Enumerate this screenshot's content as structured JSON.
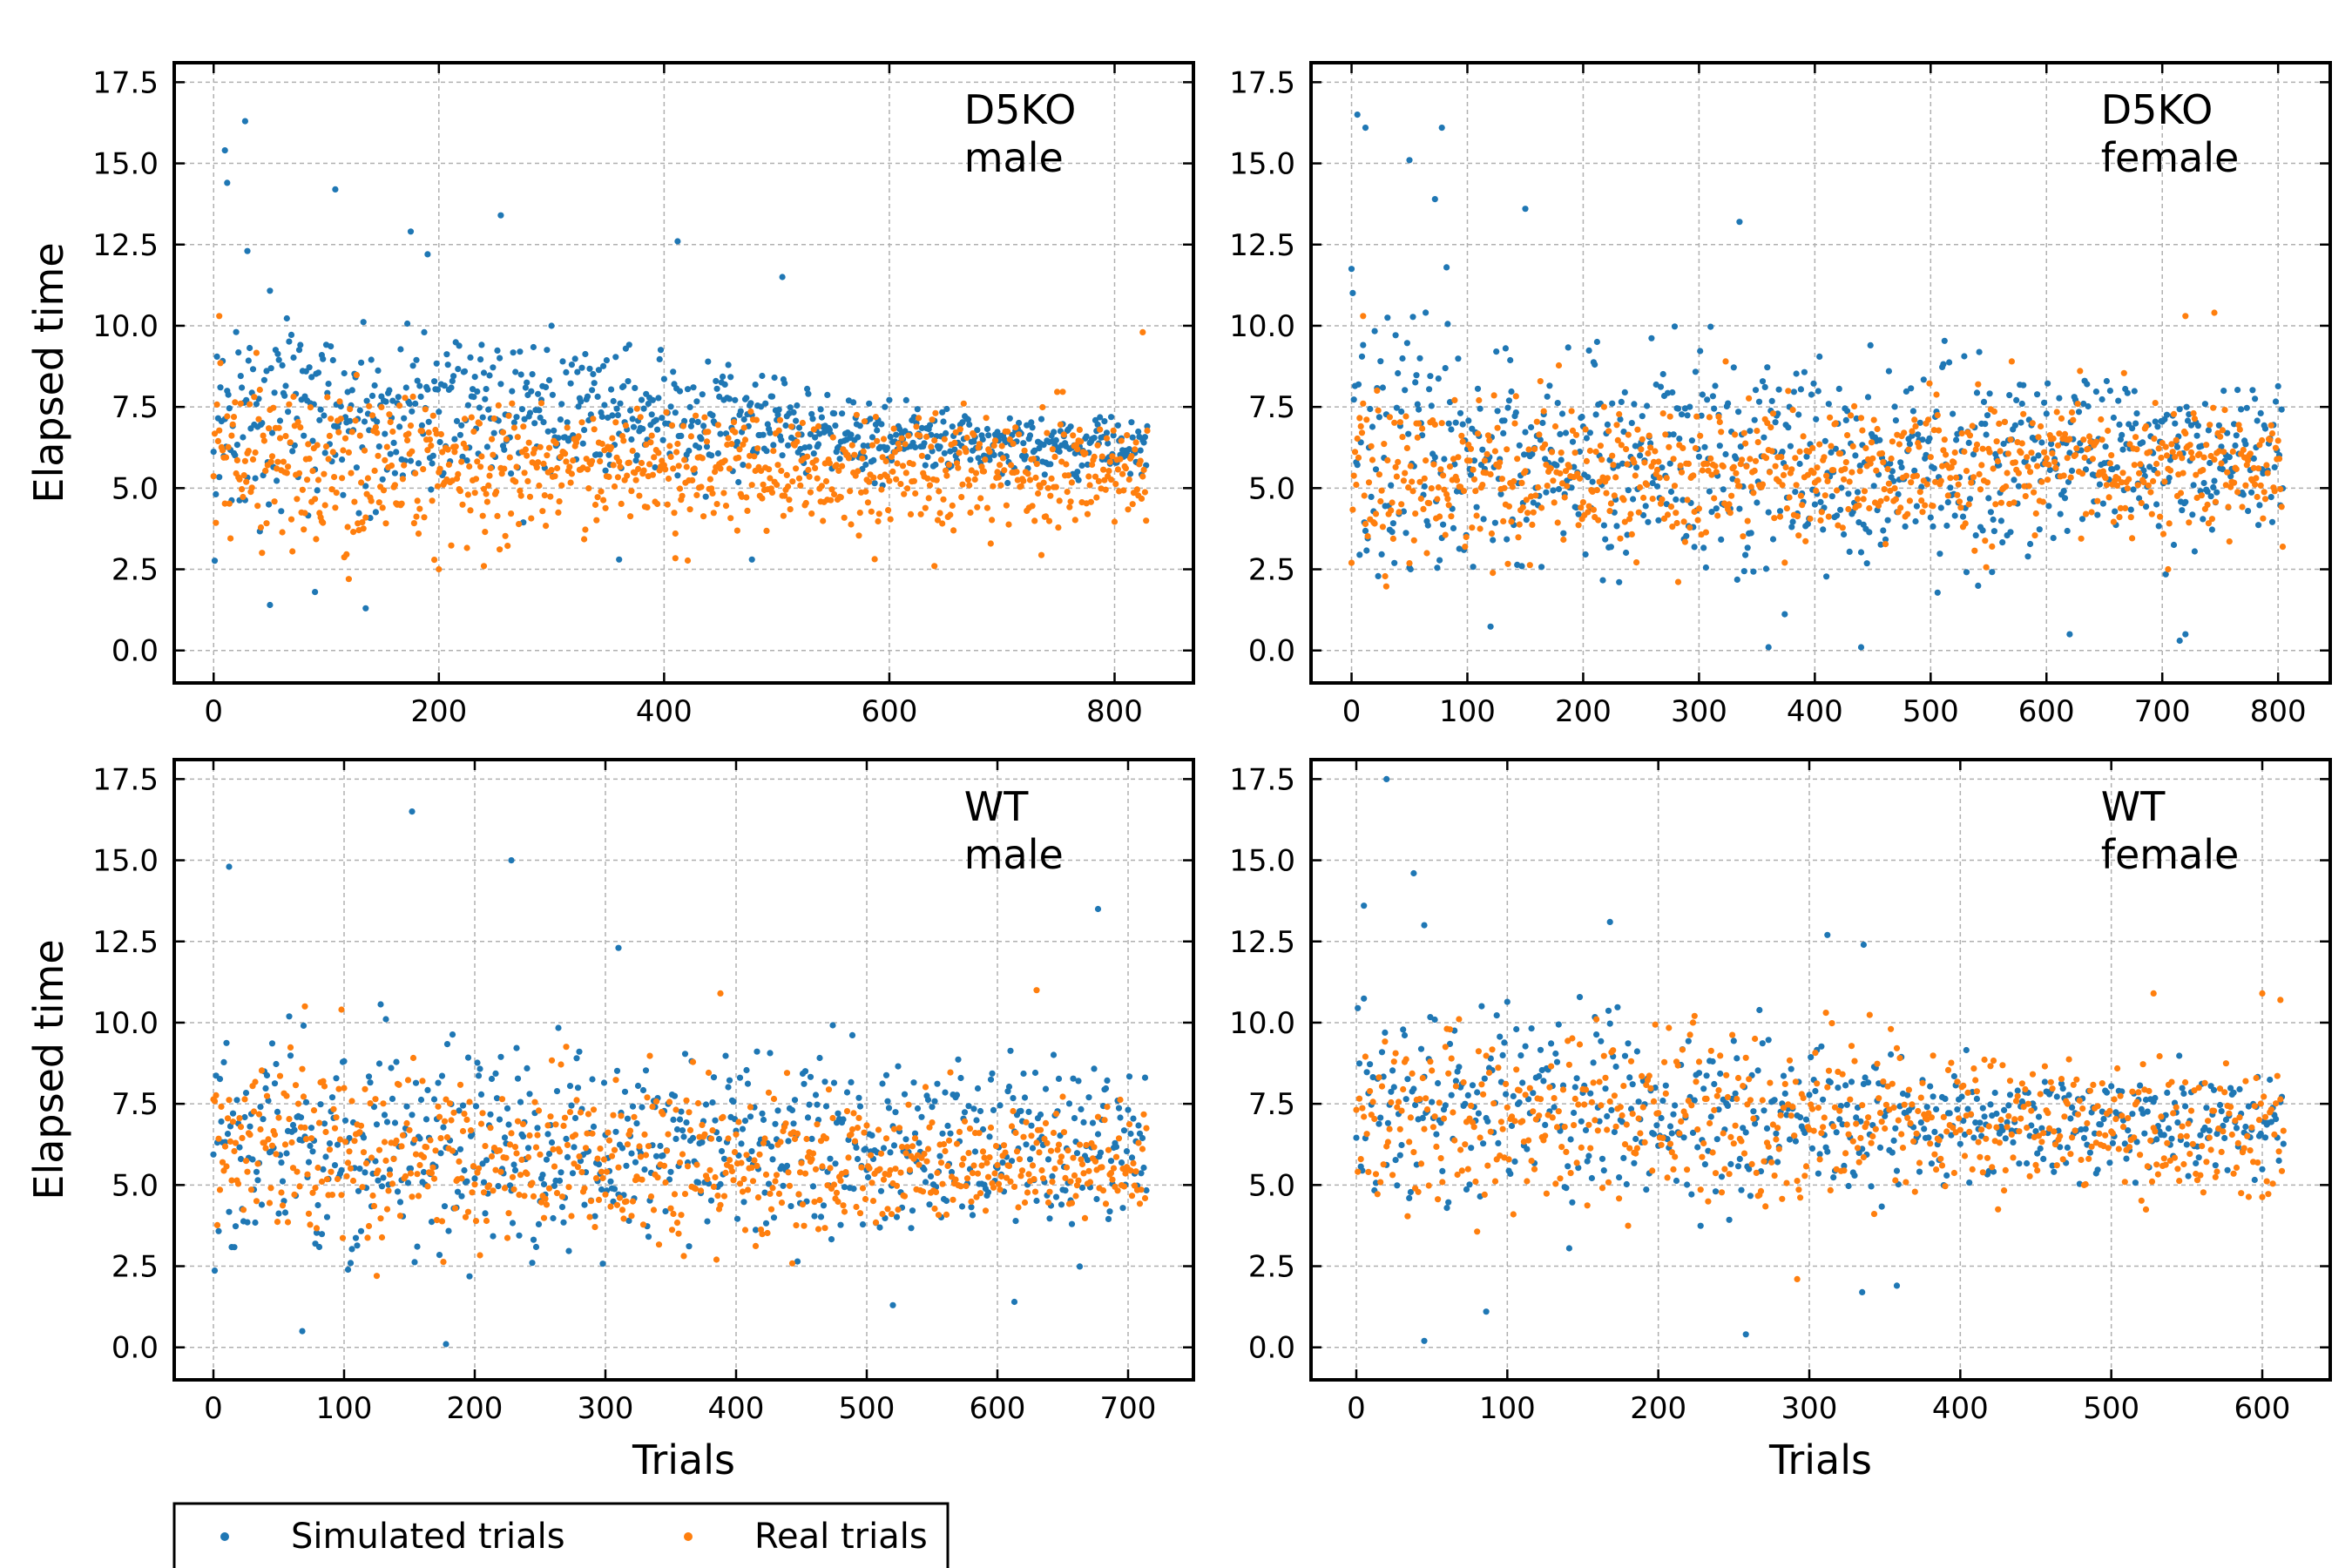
{
  "colors": {
    "simulated": "#1f77b4",
    "real": "#ff7f0e"
  },
  "legend": {
    "placement": "bottom-left, below plots",
    "simulated_label": "Simulated trials",
    "real_label": "Real trials"
  },
  "chart_data": [
    {
      "type": "scatter",
      "annotation_line1": "D5KO",
      "annotation_line2": "male",
      "ylabel": "Elapsed time",
      "xlabel": "",
      "xlim": [
        -35,
        870
      ],
      "ylim": [
        -1,
        18.1
      ],
      "xticks": [
        0,
        200,
        400,
        600,
        800
      ],
      "yticks": [
        0.0,
        2.5,
        5.0,
        7.5,
        10.0,
        12.5,
        15.0,
        17.5
      ],
      "grid": true,
      "n_trials": 830,
      "series": [
        {
          "name": "Simulated trials",
          "color": "#1f77b4",
          "approx_center": [
            [
              0,
              7.0
            ],
            [
              200,
              7.5
            ],
            [
              400,
              7.2
            ],
            [
              600,
              6.5
            ],
            [
              830,
              6.3
            ]
          ],
          "approx_spread": [
            [
              0,
              3.2
            ],
            [
              200,
              2.2
            ],
            [
              400,
              1.8
            ],
            [
              600,
              1.0
            ],
            [
              830,
              0.9
            ]
          ],
          "points": [
            [
              10,
              15.4
            ],
            [
              12,
              14.4
            ],
            [
              28,
              16.3
            ],
            [
              30,
              12.3
            ],
            [
              108,
              14.2
            ],
            [
              175,
              12.9
            ],
            [
              190,
              12.2
            ],
            [
              255,
              13.4
            ],
            [
              412,
              12.6
            ],
            [
              505,
              11.5
            ],
            [
              50,
              1.4
            ],
            [
              90,
              1.8
            ],
            [
              135,
              1.3
            ],
            [
              360,
              2.8
            ],
            [
              478,
              2.8
            ]
          ]
        },
        {
          "name": "Real trials",
          "color": "#ff7f0e",
          "approx_center": [
            [
              0,
              5.8
            ],
            [
              200,
              5.4
            ],
            [
              400,
              5.5
            ],
            [
              600,
              5.6
            ],
            [
              830,
              5.5
            ]
          ],
          "approx_spread": [
            [
              0,
              2.5
            ],
            [
              200,
              1.8
            ],
            [
              400,
              1.6
            ],
            [
              600,
              1.6
            ],
            [
              830,
              1.6
            ]
          ],
          "points": [
            [
              5,
              10.3
            ],
            [
              120,
              2.2
            ],
            [
              200,
              2.5
            ],
            [
              240,
              2.6
            ],
            [
              410,
              3.6
            ],
            [
              640,
              2.6
            ],
            [
              825,
              9.8
            ]
          ]
        }
      ]
    },
    {
      "type": "scatter",
      "annotation_line1": "D5KO",
      "annotation_line2": "female",
      "ylabel": "",
      "xlabel": "",
      "xlim": [
        -35,
        845
      ],
      "ylim": [
        -1,
        18.1
      ],
      "xticks": [
        0,
        100,
        200,
        300,
        400,
        500,
        600,
        700,
        800
      ],
      "yticks": [
        0.0,
        2.5,
        5.0,
        7.5,
        10.0,
        12.5,
        15.0,
        17.5
      ],
      "grid": true,
      "n_trials": 805,
      "series": [
        {
          "name": "Simulated trials",
          "color": "#1f77b4",
          "approx_center": [
            [
              0,
              6.0
            ],
            [
              200,
              6.0
            ],
            [
              400,
              5.8
            ],
            [
              600,
              6.0
            ],
            [
              805,
              6.0
            ]
          ],
          "approx_spread": [
            [
              0,
              4.0
            ],
            [
              200,
              3.0
            ],
            [
              400,
              3.0
            ],
            [
              600,
              2.6
            ],
            [
              805,
              2.2
            ]
          ],
          "points": [
            [
              5,
              16.5
            ],
            [
              12,
              16.1
            ],
            [
              50,
              15.1
            ],
            [
              72,
              13.9
            ],
            [
              78,
              16.1
            ],
            [
              150,
              13.6
            ],
            [
              335,
              13.2
            ],
            [
              360,
              0.1
            ],
            [
              440,
              0.1
            ],
            [
              715,
              0.3
            ],
            [
              720,
              0.5
            ],
            [
              620,
              0.5
            ]
          ]
        },
        {
          "name": "Real trials",
          "color": "#ff7f0e",
          "approx_center": [
            [
              0,
              5.5
            ],
            [
              200,
              5.2
            ],
            [
              400,
              5.6
            ],
            [
              600,
              5.8
            ],
            [
              805,
              5.6
            ]
          ],
          "approx_spread": [
            [
              0,
              2.5
            ],
            [
              200,
              2.0
            ],
            [
              400,
              2.0
            ],
            [
              600,
              1.8
            ],
            [
              805,
              1.8
            ]
          ],
          "points": [
            [
              10,
              10.3
            ],
            [
              720,
              10.3
            ],
            [
              745,
              10.4
            ],
            [
              705,
              2.5
            ]
          ]
        }
      ]
    },
    {
      "type": "scatter",
      "annotation_line1": "WT",
      "annotation_line2": "male",
      "ylabel": "Elapsed time",
      "xlabel": "Trials",
      "xlim": [
        -30,
        750
      ],
      "ylim": [
        -1,
        18.1
      ],
      "xticks": [
        0,
        100,
        200,
        300,
        400,
        500,
        600,
        700
      ],
      "yticks": [
        0.0,
        2.5,
        5.0,
        7.5,
        10.0,
        12.5,
        15.0,
        17.5
      ],
      "grid": true,
      "n_trials": 715,
      "series": [
        {
          "name": "Simulated trials",
          "color": "#1f77b4",
          "approx_center": [
            [
              0,
              6.0
            ],
            [
              200,
              6.0
            ],
            [
              400,
              6.3
            ],
            [
              600,
              6.3
            ],
            [
              715,
              6.3
            ]
          ],
          "approx_spread": [
            [
              0,
              3.2
            ],
            [
              200,
              2.8
            ],
            [
              400,
              2.8
            ],
            [
              600,
              2.6
            ],
            [
              715,
              2.5
            ]
          ],
          "points": [
            [
              12,
              14.8
            ],
            [
              152,
              16.5
            ],
            [
              228,
              15.0
            ],
            [
              68,
              0.5
            ],
            [
              178,
              0.1
            ],
            [
              677,
              13.5
            ],
            [
              520,
              1.3
            ],
            [
              613,
              1.4
            ],
            [
              310,
              12.3
            ]
          ]
        },
        {
          "name": "Real trials",
          "color": "#ff7f0e",
          "approx_center": [
            [
              0,
              6.2
            ],
            [
              200,
              5.8
            ],
            [
              400,
              5.6
            ],
            [
              600,
              5.6
            ],
            [
              715,
              5.8
            ]
          ],
          "approx_spread": [
            [
              0,
              2.5
            ],
            [
              200,
              2.4
            ],
            [
              400,
              2.2
            ],
            [
              600,
              1.8
            ],
            [
              715,
              1.6
            ]
          ],
          "points": [
            [
              70,
              10.5
            ],
            [
              98,
              10.4
            ],
            [
              388,
              10.9
            ],
            [
              630,
              11.0
            ],
            [
              125,
              2.2
            ]
          ]
        }
      ]
    },
    {
      "type": "scatter",
      "annotation_line1": "WT",
      "annotation_line2": "female",
      "ylabel": "",
      "xlabel": "Trials",
      "xlim": [
        -30,
        645
      ],
      "ylim": [
        -1,
        18.1
      ],
      "xticks": [
        0,
        100,
        200,
        300,
        400,
        500,
        600
      ],
      "yticks": [
        0.0,
        2.5,
        5.0,
        7.5,
        10.0,
        12.5,
        15.0,
        17.5
      ],
      "grid": true,
      "n_trials": 615,
      "series": [
        {
          "name": "Simulated trials",
          "color": "#1f77b4",
          "approx_center": [
            [
              0,
              7.5
            ],
            [
              200,
              7.2
            ],
            [
              400,
              6.8
            ],
            [
              615,
              6.8
            ]
          ],
          "approx_spread": [
            [
              0,
              3.0
            ],
            [
              200,
              2.6
            ],
            [
              400,
              1.8
            ],
            [
              615,
              1.2
            ]
          ],
          "points": [
            [
              20,
              17.5
            ],
            [
              5,
              13.6
            ],
            [
              38,
              14.6
            ],
            [
              45,
              13.0
            ],
            [
              45,
              0.2
            ],
            [
              258,
              0.4
            ],
            [
              168,
              13.1
            ],
            [
              312,
              12.7
            ],
            [
              336,
              12.4
            ],
            [
              86,
              1.1
            ],
            [
              335,
              1.7
            ],
            [
              358,
              1.9
            ]
          ]
        },
        {
          "name": "Real trials",
          "color": "#ff7f0e",
          "approx_center": [
            [
              0,
              7.0
            ],
            [
              200,
              7.0
            ],
            [
              400,
              6.8
            ],
            [
              615,
              6.5
            ]
          ],
          "approx_spread": [
            [
              0,
              2.6
            ],
            [
              200,
              2.4
            ],
            [
              400,
              2.2
            ],
            [
              615,
              2.0
            ]
          ],
          "points": [
            [
              600,
              10.9
            ],
            [
              612,
              10.7
            ],
            [
              528,
              10.9
            ],
            [
              292,
              2.1
            ]
          ]
        }
      ]
    }
  ]
}
